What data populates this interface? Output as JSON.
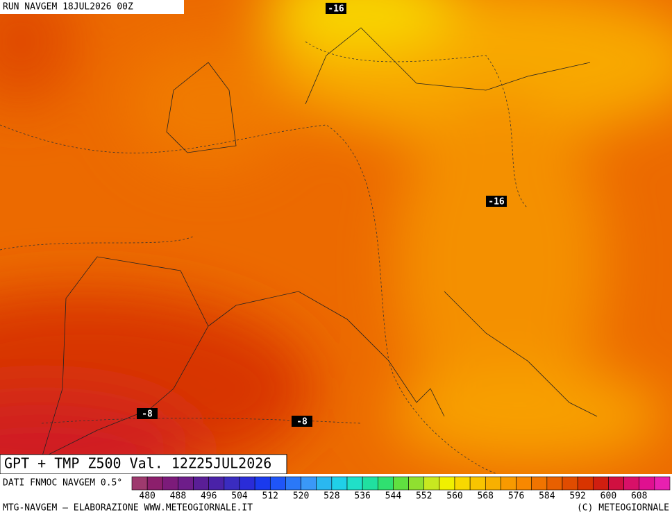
{
  "header": {
    "run": "RUN NAVGEM 18JUL2026 00Z"
  },
  "map": {
    "title": "GPT + TMP Z500 Val. 12Z25JUL2026",
    "contour_labels": [
      "-16",
      "-16",
      "-8",
      "-8"
    ]
  },
  "legend": {
    "source": "DATI FNMOC NAVGEM 0.5°",
    "labels": [
      480,
      488,
      496,
      504,
      512,
      520,
      528,
      536,
      544,
      552,
      560,
      568,
      576,
      584,
      592,
      600,
      608
    ],
    "colors": [
      "#9e3a6e",
      "#8c1f6c",
      "#7c1b7a",
      "#6e1d8a",
      "#5a1e96",
      "#4a22a8",
      "#3a2cc0",
      "#2a2cd8",
      "#1a3aee",
      "#1f55f8",
      "#2a78f8",
      "#3a98f8",
      "#2ab8f0",
      "#20d0e8",
      "#20e0c8",
      "#20e0a0",
      "#30e070",
      "#60e040",
      "#90e030",
      "#c8e820",
      "#f0f000",
      "#f8d800",
      "#f8c400",
      "#f8b000",
      "#f89a00",
      "#f88800",
      "#f07400",
      "#e86000",
      "#e04c00",
      "#d83400",
      "#d01e10",
      "#d01040",
      "#d81068",
      "#e01090",
      "#e820b0"
    ]
  },
  "footer": {
    "left": "MTG-NAVGEM – ELABORAZIONE WWW.METEOGIORNALE.IT",
    "right": "(C) METEOGIORNALE"
  }
}
